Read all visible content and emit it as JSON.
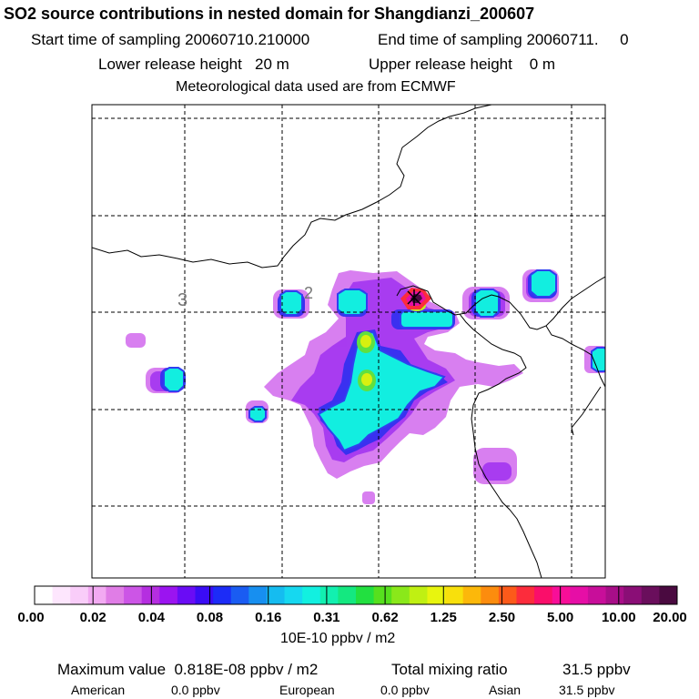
{
  "header": {
    "title": "SO2 source contributions in nested domain for Shangdianzi_200607",
    "start_sampling": "Start time of sampling 20060710.210000",
    "end_sampling": "End time of sampling 20060711.     0",
    "lower_release": "Lower release height   20 m",
    "upper_release": "Upper release height    0 m",
    "met_data": "Meteorological data used are from ECMWF"
  },
  "map": {
    "contour_labels": [
      "3",
      "2"
    ]
  },
  "colorbar": {
    "tick_labels": [
      "0.00",
      "0.02",
      "0.04",
      "0.08",
      "0.16",
      "0.31",
      "0.62",
      "1.25",
      "2.50",
      "5.00",
      "10.00",
      "20.00"
    ],
    "colors": [
      "#ffffff",
      "#fde6fd",
      "#f9cdf9",
      "#f2aaf2",
      "#e07de6",
      "#cc55e6",
      "#b52ee0",
      "#9b14f0",
      "#6a0cf5",
      "#3a0cf5",
      "#1c2cf7",
      "#1a5cf2",
      "#178ff0",
      "#15bcf0",
      "#16d8f0",
      "#12f0e0",
      "#12f0b0",
      "#14e880",
      "#22e040",
      "#56e01e",
      "#8ae81a",
      "#c0f012",
      "#e8f50e",
      "#f8e00c",
      "#fcb80a",
      "#fc8c0e",
      "#fc5a1a",
      "#fc2c3c",
      "#fa0e6a",
      "#f80e98",
      "#e60ea6",
      "#c80e9a",
      "#a80e88",
      "#8a0e76",
      "#6a0e5c",
      "#4a0a40"
    ],
    "units": "10E-10 ppbv / m2"
  },
  "footer": {
    "max_label": "Maximum value  0.818E-08 ppbv / m2",
    "total_label": "Total mixing ratio",
    "total_value": "31.5 ppbv",
    "american_label": "American",
    "american_value": "0.0 ppbv",
    "european_label": "European",
    "european_value": "0.0 ppbv",
    "asian_label": "Asian",
    "asian_value": "31.5 ppbv"
  },
  "chart_data": {
    "type": "heatmap",
    "title": "SO2 source contributions in nested domain for Shangdianzi_200607",
    "colorbar_levels": [
      0.0,
      0.02,
      0.04,
      0.08,
      0.16,
      0.31,
      0.62,
      1.25,
      2.5,
      5.0,
      10.0,
      20.0
    ],
    "colorbar_units": "10E-10 ppbv / m2",
    "max_value": "0.818E-08 ppbv / m2",
    "total_mixing_ratio_ppbv": 31.5,
    "regional_contributions_ppbv": {
      "American": 0.0,
      "European": 0.0,
      "Asian": 31.5
    },
    "grid": true
  }
}
